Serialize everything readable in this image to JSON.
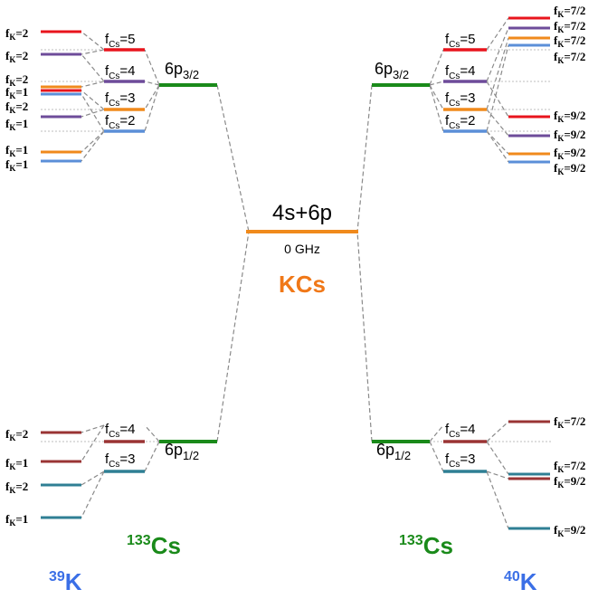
{
  "center": {
    "label": "4s+6p",
    "energy": "0 GHz",
    "molecule": "KCs",
    "colors": {
      "level": "#f08a1c",
      "text": "#f07818"
    }
  },
  "colors": {
    "p_state": "#1a8a1a",
    "cs_label": "#1a8a1a",
    "k_label": "#3b6fe6",
    "red": "#e8141c",
    "purple": "#6e4c9a",
    "orange": "#f08a1c",
    "blue": "#5b8fd8",
    "brown": "#9a3434",
    "teal": "#2f7f94"
  },
  "left": {
    "cs_label": {
      "mass": "133",
      "sym": "Cs"
    },
    "k_label": {
      "mass": "39",
      "sym": "K"
    },
    "p32": {
      "main": "6p",
      "sub": "3/2"
    },
    "p12": {
      "main": "6p",
      "sub": "1/2"
    },
    "fcs_upper": [
      {
        "main": "f",
        "sub": "Cs",
        "val": "=5"
      },
      {
        "main": "f",
        "sub": "Cs",
        "val": "=4"
      },
      {
        "main": "f",
        "sub": "Cs",
        "val": "=3"
      },
      {
        "main": "f",
        "sub": "Cs",
        "val": "=2"
      }
    ],
    "fcs_lower": [
      {
        "main": "f",
        "sub": "Cs",
        "val": "=4"
      },
      {
        "main": "f",
        "sub": "Cs",
        "val": "=3"
      }
    ],
    "fk_upper": [
      {
        "main": "f",
        "sub": "K",
        "val": "=2"
      },
      {
        "main": "f",
        "sub": "K",
        "val": "=2"
      },
      {
        "main": "f",
        "sub": "K",
        "val": "=2"
      },
      {
        "main": "f",
        "sub": "K",
        "val": "=1"
      },
      {
        "main": "f",
        "sub": "K",
        "val": "=2"
      },
      {
        "main": "f",
        "sub": "K",
        "val": "=1"
      },
      {
        "main": "f",
        "sub": "K",
        "val": "=1"
      },
      {
        "main": "f",
        "sub": "K",
        "val": "=1"
      }
    ],
    "fk_lower": [
      {
        "main": "f",
        "sub": "K",
        "val": "=2"
      },
      {
        "main": "f",
        "sub": "K",
        "val": "=1"
      },
      {
        "main": "f",
        "sub": "K",
        "val": "=2"
      },
      {
        "main": "f",
        "sub": "K",
        "val": "=1"
      }
    ]
  },
  "right": {
    "cs_label": {
      "mass": "133",
      "sym": "Cs"
    },
    "k_label": {
      "mass": "40",
      "sym": "K"
    },
    "p32": {
      "main": "6p",
      "sub": "3/2"
    },
    "p12": {
      "main": "6p",
      "sub": "1/2"
    },
    "fcs_upper": [
      {
        "main": "f",
        "sub": "Cs",
        "val": "=5"
      },
      {
        "main": "f",
        "sub": "Cs",
        "val": "=4"
      },
      {
        "main": "f",
        "sub": "Cs",
        "val": "=3"
      },
      {
        "main": "f",
        "sub": "Cs",
        "val": "=2"
      }
    ],
    "fcs_lower": [
      {
        "main": "f",
        "sub": "Cs",
        "val": "=4"
      },
      {
        "main": "f",
        "sub": "Cs",
        "val": "=3"
      }
    ],
    "fk_upper": [
      {
        "main": "f",
        "sub": "K",
        "val": "=7/2"
      },
      {
        "main": "f",
        "sub": "K",
        "val": "=7/2"
      },
      {
        "main": "f",
        "sub": "K",
        "val": "=7/2"
      },
      {
        "main": "f",
        "sub": "K",
        "val": "=7/2"
      },
      {
        "main": "f",
        "sub": "K",
        "val": "=9/2"
      },
      {
        "main": "f",
        "sub": "K",
        "val": "=9/2"
      },
      {
        "main": "f",
        "sub": "K",
        "val": "=9/2"
      },
      {
        "main": "f",
        "sub": "K",
        "val": "=9/2"
      }
    ],
    "fk_lower": [
      {
        "main": "f",
        "sub": "K",
        "val": "=7/2"
      },
      {
        "main": "f",
        "sub": "K",
        "val": "=7/2"
      },
      {
        "main": "f",
        "sub": "K",
        "val": "=9/2"
      },
      {
        "main": "f",
        "sub": "K",
        "val": "=9/2"
      }
    ]
  }
}
